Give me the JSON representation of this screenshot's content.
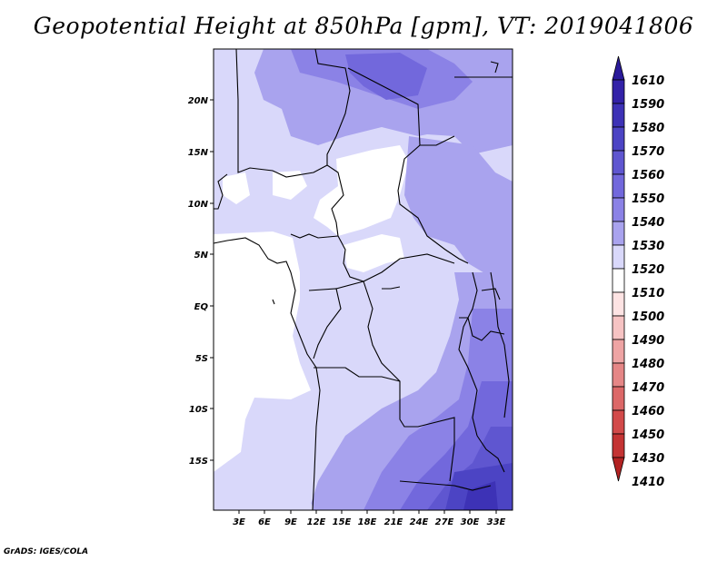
{
  "title": "Geopotential Height at 850hPa [gpm], VT: 2019041806",
  "credit": "GrADS: IGES/COLA",
  "map": {
    "lat_labels": [
      "20N",
      "15N",
      "10N",
      "5N",
      "EQ",
      "5S",
      "10S",
      "15S"
    ],
    "lon_labels": [
      "3E",
      "6E",
      "9E",
      "12E",
      "15E",
      "18E",
      "21E",
      "24E",
      "27E",
      "30E",
      "33E"
    ],
    "lon_range": [
      0,
      35
    ],
    "lat_range": [
      -20,
      24
    ]
  },
  "colorbar": {
    "levels": [
      {
        "label": "1610",
        "color": "#2a1a9a"
      },
      {
        "label": "1590",
        "color": "#3322a8"
      },
      {
        "label": "1580",
        "color": "#3d32b6"
      },
      {
        "label": "1570",
        "color": "#4c44c4"
      },
      {
        "label": "1560",
        "color": "#5f56d0"
      },
      {
        "label": "1550",
        "color": "#7268dc"
      },
      {
        "label": "1540",
        "color": "#8b82e6"
      },
      {
        "label": "1530",
        "color": "#a9a3ee"
      },
      {
        "label": "1520",
        "color": "#d9d8fa"
      },
      {
        "label": "1510",
        "color": "#ffffff"
      },
      {
        "label": "1500",
        "color": "#fde3e3"
      },
      {
        "label": "1490",
        "color": "#f6c3c3"
      },
      {
        "label": "1480",
        "color": "#eea4a4"
      },
      {
        "label": "1470",
        "color": "#e58686"
      },
      {
        "label": "1460",
        "color": "#dc6868"
      },
      {
        "label": "1450",
        "color": "#d24a4a"
      },
      {
        "label": "1430",
        "color": "#c43434"
      },
      {
        "label": "1410",
        "color": "#b22222"
      }
    ]
  }
}
